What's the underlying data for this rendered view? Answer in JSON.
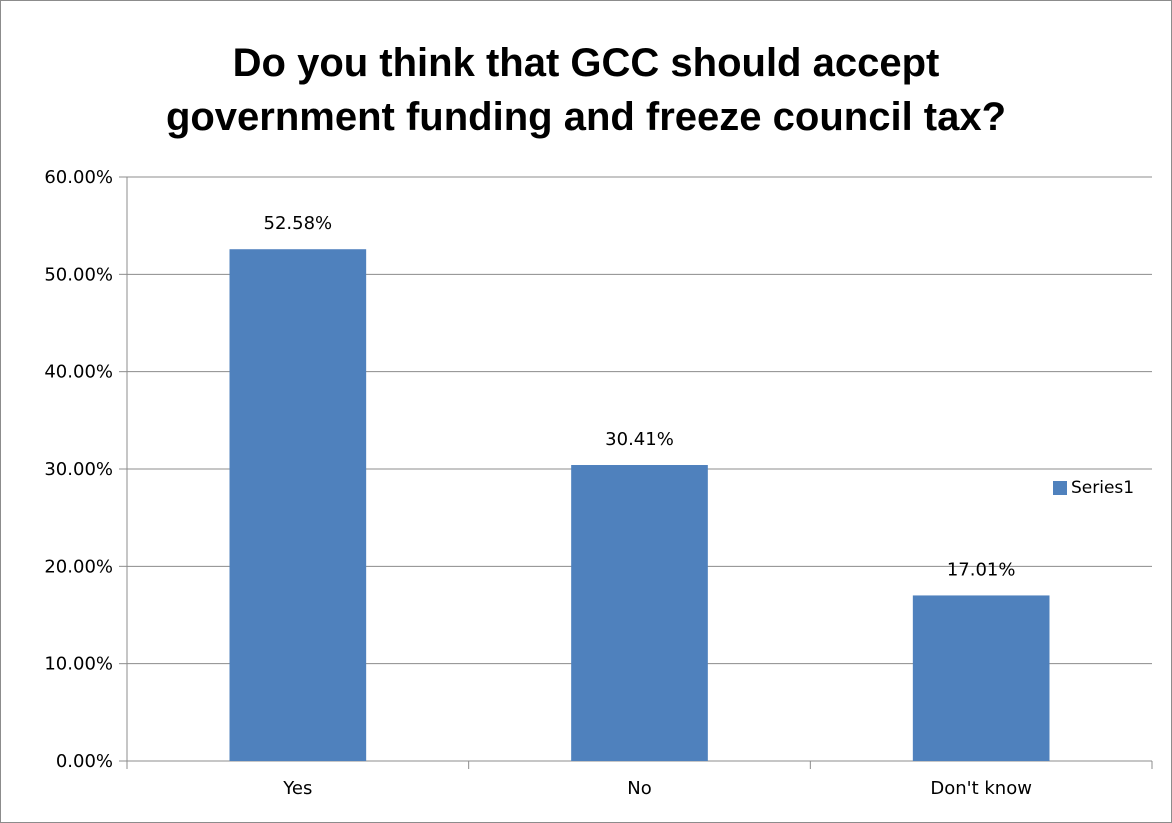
{
  "chart_data": {
    "type": "bar",
    "title_lines": [
      "Do you think that GCC should accept",
      "government funding and freeze council tax?"
    ],
    "categories": [
      "Yes",
      "No",
      "Don't know"
    ],
    "series": [
      {
        "name": "Series1",
        "values": [
          52.58,
          30.41,
          17.01
        ],
        "labels": [
          "52.58%",
          "30.41%",
          "17.01%"
        ],
        "color": "#4f81bd"
      }
    ],
    "ylim": [
      0,
      60
    ],
    "yticks": [
      0,
      10,
      20,
      30,
      40,
      50,
      60
    ],
    "ytick_labels": [
      "0.00%",
      "10.00%",
      "20.00%",
      "30.00%",
      "40.00%",
      "50.00%",
      "60.00%"
    ],
    "grid": true,
    "legend_position": "right"
  }
}
